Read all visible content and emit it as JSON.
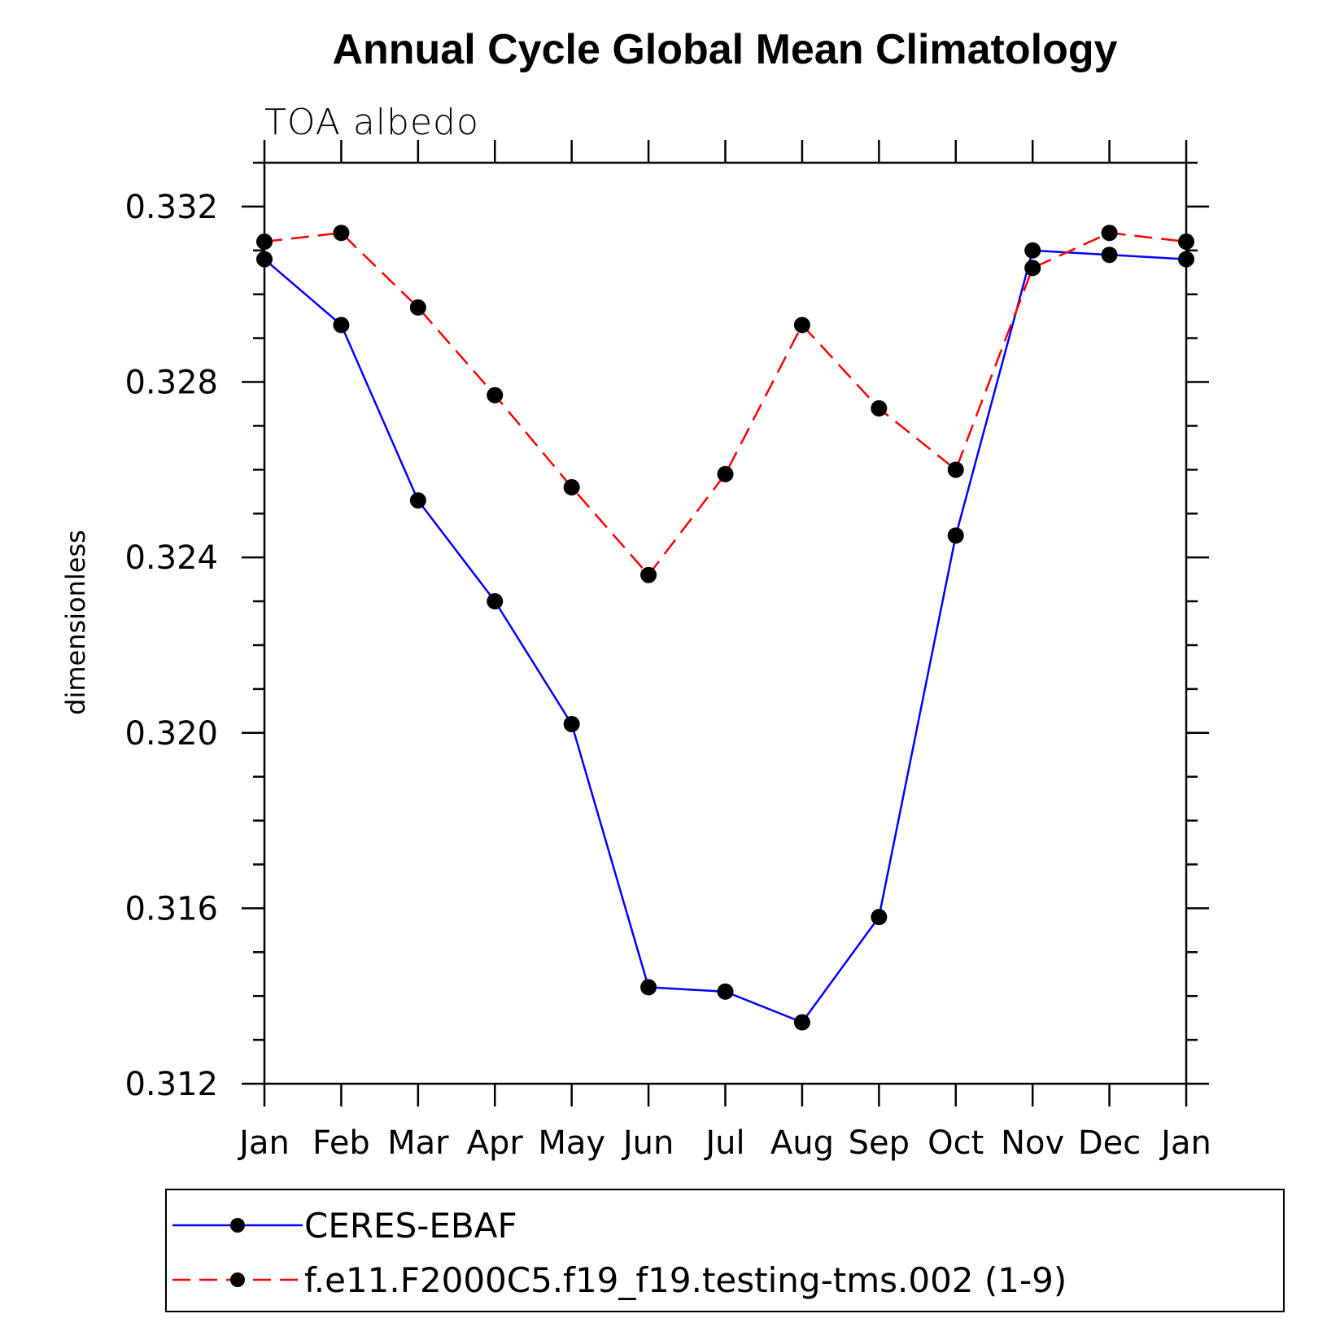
{
  "chart_data": {
    "type": "line",
    "title": "Annual Cycle Global Mean Climatology",
    "subtitle": "TOA albedo",
    "xlabel": "",
    "ylabel": "dimensionless",
    "categories": [
      "Jan",
      "Feb",
      "Mar",
      "Apr",
      "May",
      "Jun",
      "Jul",
      "Aug",
      "Sep",
      "Oct",
      "Nov",
      "Dec",
      "Jan"
    ],
    "ylim": [
      0.312,
      0.333
    ],
    "yticks": [
      0.312,
      0.316,
      0.32,
      0.324,
      0.328,
      0.332
    ],
    "ytick_labels": [
      "0.312",
      "0.316",
      "0.320",
      "0.324",
      "0.328",
      "0.332"
    ],
    "y_minor_step": 0.001,
    "legend_position": "bottom",
    "series": [
      {
        "name": "CERES-EBAF",
        "color": "#0000ff",
        "line_style": "solid",
        "marker": "filled-circle",
        "values": [
          0.3308,
          0.3293,
          0.3253,
          0.323,
          0.3202,
          0.3142,
          0.3141,
          0.3134,
          0.3158,
          0.3245,
          0.331,
          0.3309,
          0.3308
        ]
      },
      {
        "name": "f.e11.F2000C5.f19_f19.testing-tms.002 (1-9)",
        "color": "#ff0000",
        "line_style": "dashed",
        "marker": "filled-circle",
        "values": [
          0.3312,
          0.3314,
          0.3297,
          0.3277,
          0.3256,
          0.3236,
          0.3259,
          0.3293,
          0.3274,
          0.326,
          0.3306,
          0.3314,
          0.3312
        ]
      }
    ]
  }
}
